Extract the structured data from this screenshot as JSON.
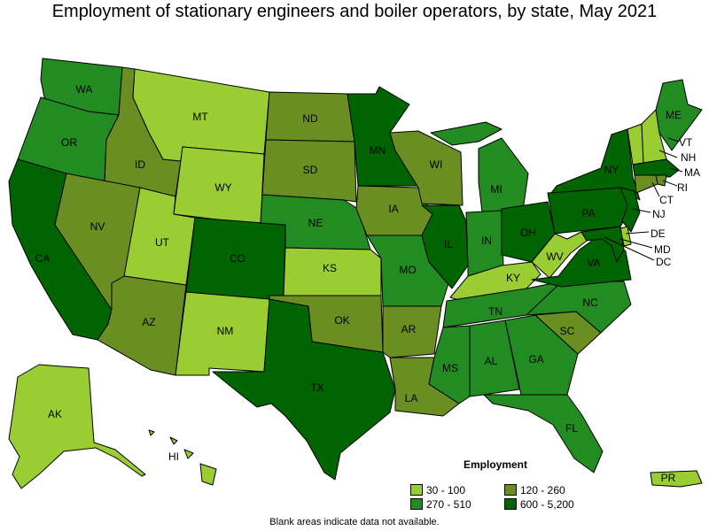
{
  "title": "Employment of stationary engineers and boiler operators, by state, May 2021",
  "legend": {
    "title": "Employment",
    "items": [
      {
        "label": "30 - 100",
        "color": "#9acd32"
      },
      {
        "label": "120 - 260",
        "color": "#6b8e23"
      },
      {
        "label": "270 - 510",
        "color": "#228b22"
      },
      {
        "label": "600 - 5,200",
        "color": "#006400"
      }
    ]
  },
  "note": "Blank areas indicate data not available.",
  "states": [
    {
      "code": "WA",
      "tier": 2
    },
    {
      "code": "OR",
      "tier": 2
    },
    {
      "code": "CA",
      "tier": 3
    },
    {
      "code": "ID",
      "tier": 1
    },
    {
      "code": "NV",
      "tier": 1
    },
    {
      "code": "MT",
      "tier": 0
    },
    {
      "code": "WY",
      "tier": 0
    },
    {
      "code": "UT",
      "tier": 0
    },
    {
      "code": "AZ",
      "tier": 1
    },
    {
      "code": "CO",
      "tier": 3
    },
    {
      "code": "NM",
      "tier": 0
    },
    {
      "code": "ND",
      "tier": 1
    },
    {
      "code": "SD",
      "tier": 1
    },
    {
      "code": "NE",
      "tier": 2
    },
    {
      "code": "KS",
      "tier": 0
    },
    {
      "code": "OK",
      "tier": 1
    },
    {
      "code": "TX",
      "tier": 3
    },
    {
      "code": "MN",
      "tier": 3
    },
    {
      "code": "IA",
      "tier": 1
    },
    {
      "code": "MO",
      "tier": 2
    },
    {
      "code": "AR",
      "tier": 1
    },
    {
      "code": "LA",
      "tier": 1
    },
    {
      "code": "WI",
      "tier": 1
    },
    {
      "code": "IL",
      "tier": 3
    },
    {
      "code": "MI",
      "tier": 2
    },
    {
      "code": "IN",
      "tier": 2
    },
    {
      "code": "OH",
      "tier": 3
    },
    {
      "code": "KY",
      "tier": 0
    },
    {
      "code": "TN",
      "tier": 2
    },
    {
      "code": "MS",
      "tier": 2
    },
    {
      "code": "AL",
      "tier": 2
    },
    {
      "code": "GA",
      "tier": 2
    },
    {
      "code": "FL",
      "tier": 2
    },
    {
      "code": "SC",
      "tier": 1
    },
    {
      "code": "NC",
      "tier": 2
    },
    {
      "code": "VA",
      "tier": 3
    },
    {
      "code": "WV",
      "tier": 0
    },
    {
      "code": "PA",
      "tier": 3
    },
    {
      "code": "NY",
      "tier": 3
    },
    {
      "code": "ME",
      "tier": 2
    },
    {
      "code": "VT",
      "tier": 0
    },
    {
      "code": "NH",
      "tier": 0
    },
    {
      "code": "MA",
      "tier": 3
    },
    {
      "code": "RI",
      "tier": 1
    },
    {
      "code": "CT",
      "tier": 1
    },
    {
      "code": "NJ",
      "tier": 3
    },
    {
      "code": "DE",
      "tier": 0
    },
    {
      "code": "MD",
      "tier": 3
    },
    {
      "code": "DC",
      "tier": 3
    },
    {
      "code": "AK",
      "tier": 0
    },
    {
      "code": "HI",
      "tier": 0
    },
    {
      "code": "PR",
      "tier": 0
    }
  ]
}
